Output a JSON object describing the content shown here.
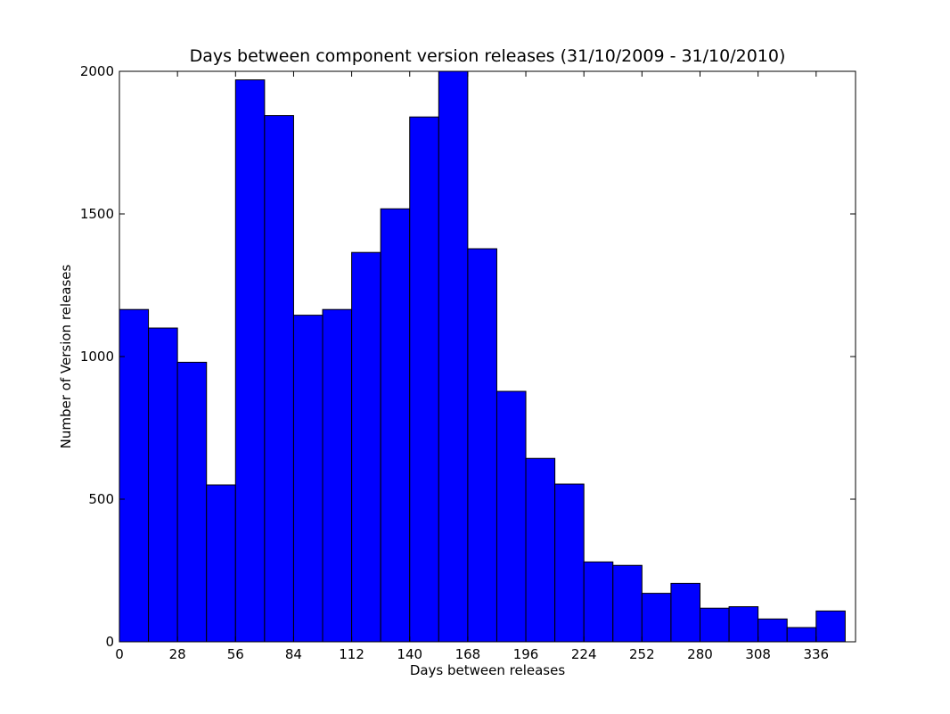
{
  "chart_data": {
    "type": "bar",
    "subtype": "histogram",
    "title": "Days between component version releases (31/10/2009 - 31/10/2010)",
    "xlabel": "Days between releases",
    "ylabel": "Number of Version releases",
    "xlim": [
      0,
      355
    ],
    "ylim": [
      0,
      2000
    ],
    "xticks": [
      0,
      28,
      56,
      84,
      112,
      140,
      168,
      196,
      224,
      252,
      280,
      308,
      336
    ],
    "yticks": [
      0,
      500,
      1000,
      1500,
      2000
    ],
    "bin_edges": [
      0,
      14,
      28,
      42,
      56,
      70,
      84,
      98,
      112,
      126,
      140,
      154,
      168,
      182,
      196,
      210,
      224,
      238,
      252,
      266,
      280,
      294,
      308,
      322,
      336,
      350
    ],
    "values": [
      1165,
      1100,
      980,
      550,
      1970,
      1845,
      1145,
      1165,
      1365,
      1518,
      1840,
      2000,
      1378,
      878,
      643,
      553,
      280,
      268,
      170,
      205,
      118,
      123,
      80,
      50,
      108
    ],
    "grid": false,
    "legend": "none",
    "colors": {
      "bar_fill": "#0000ff",
      "bar_edge": "#000000",
      "axes": "#000000",
      "background": "#ffffff"
    }
  }
}
